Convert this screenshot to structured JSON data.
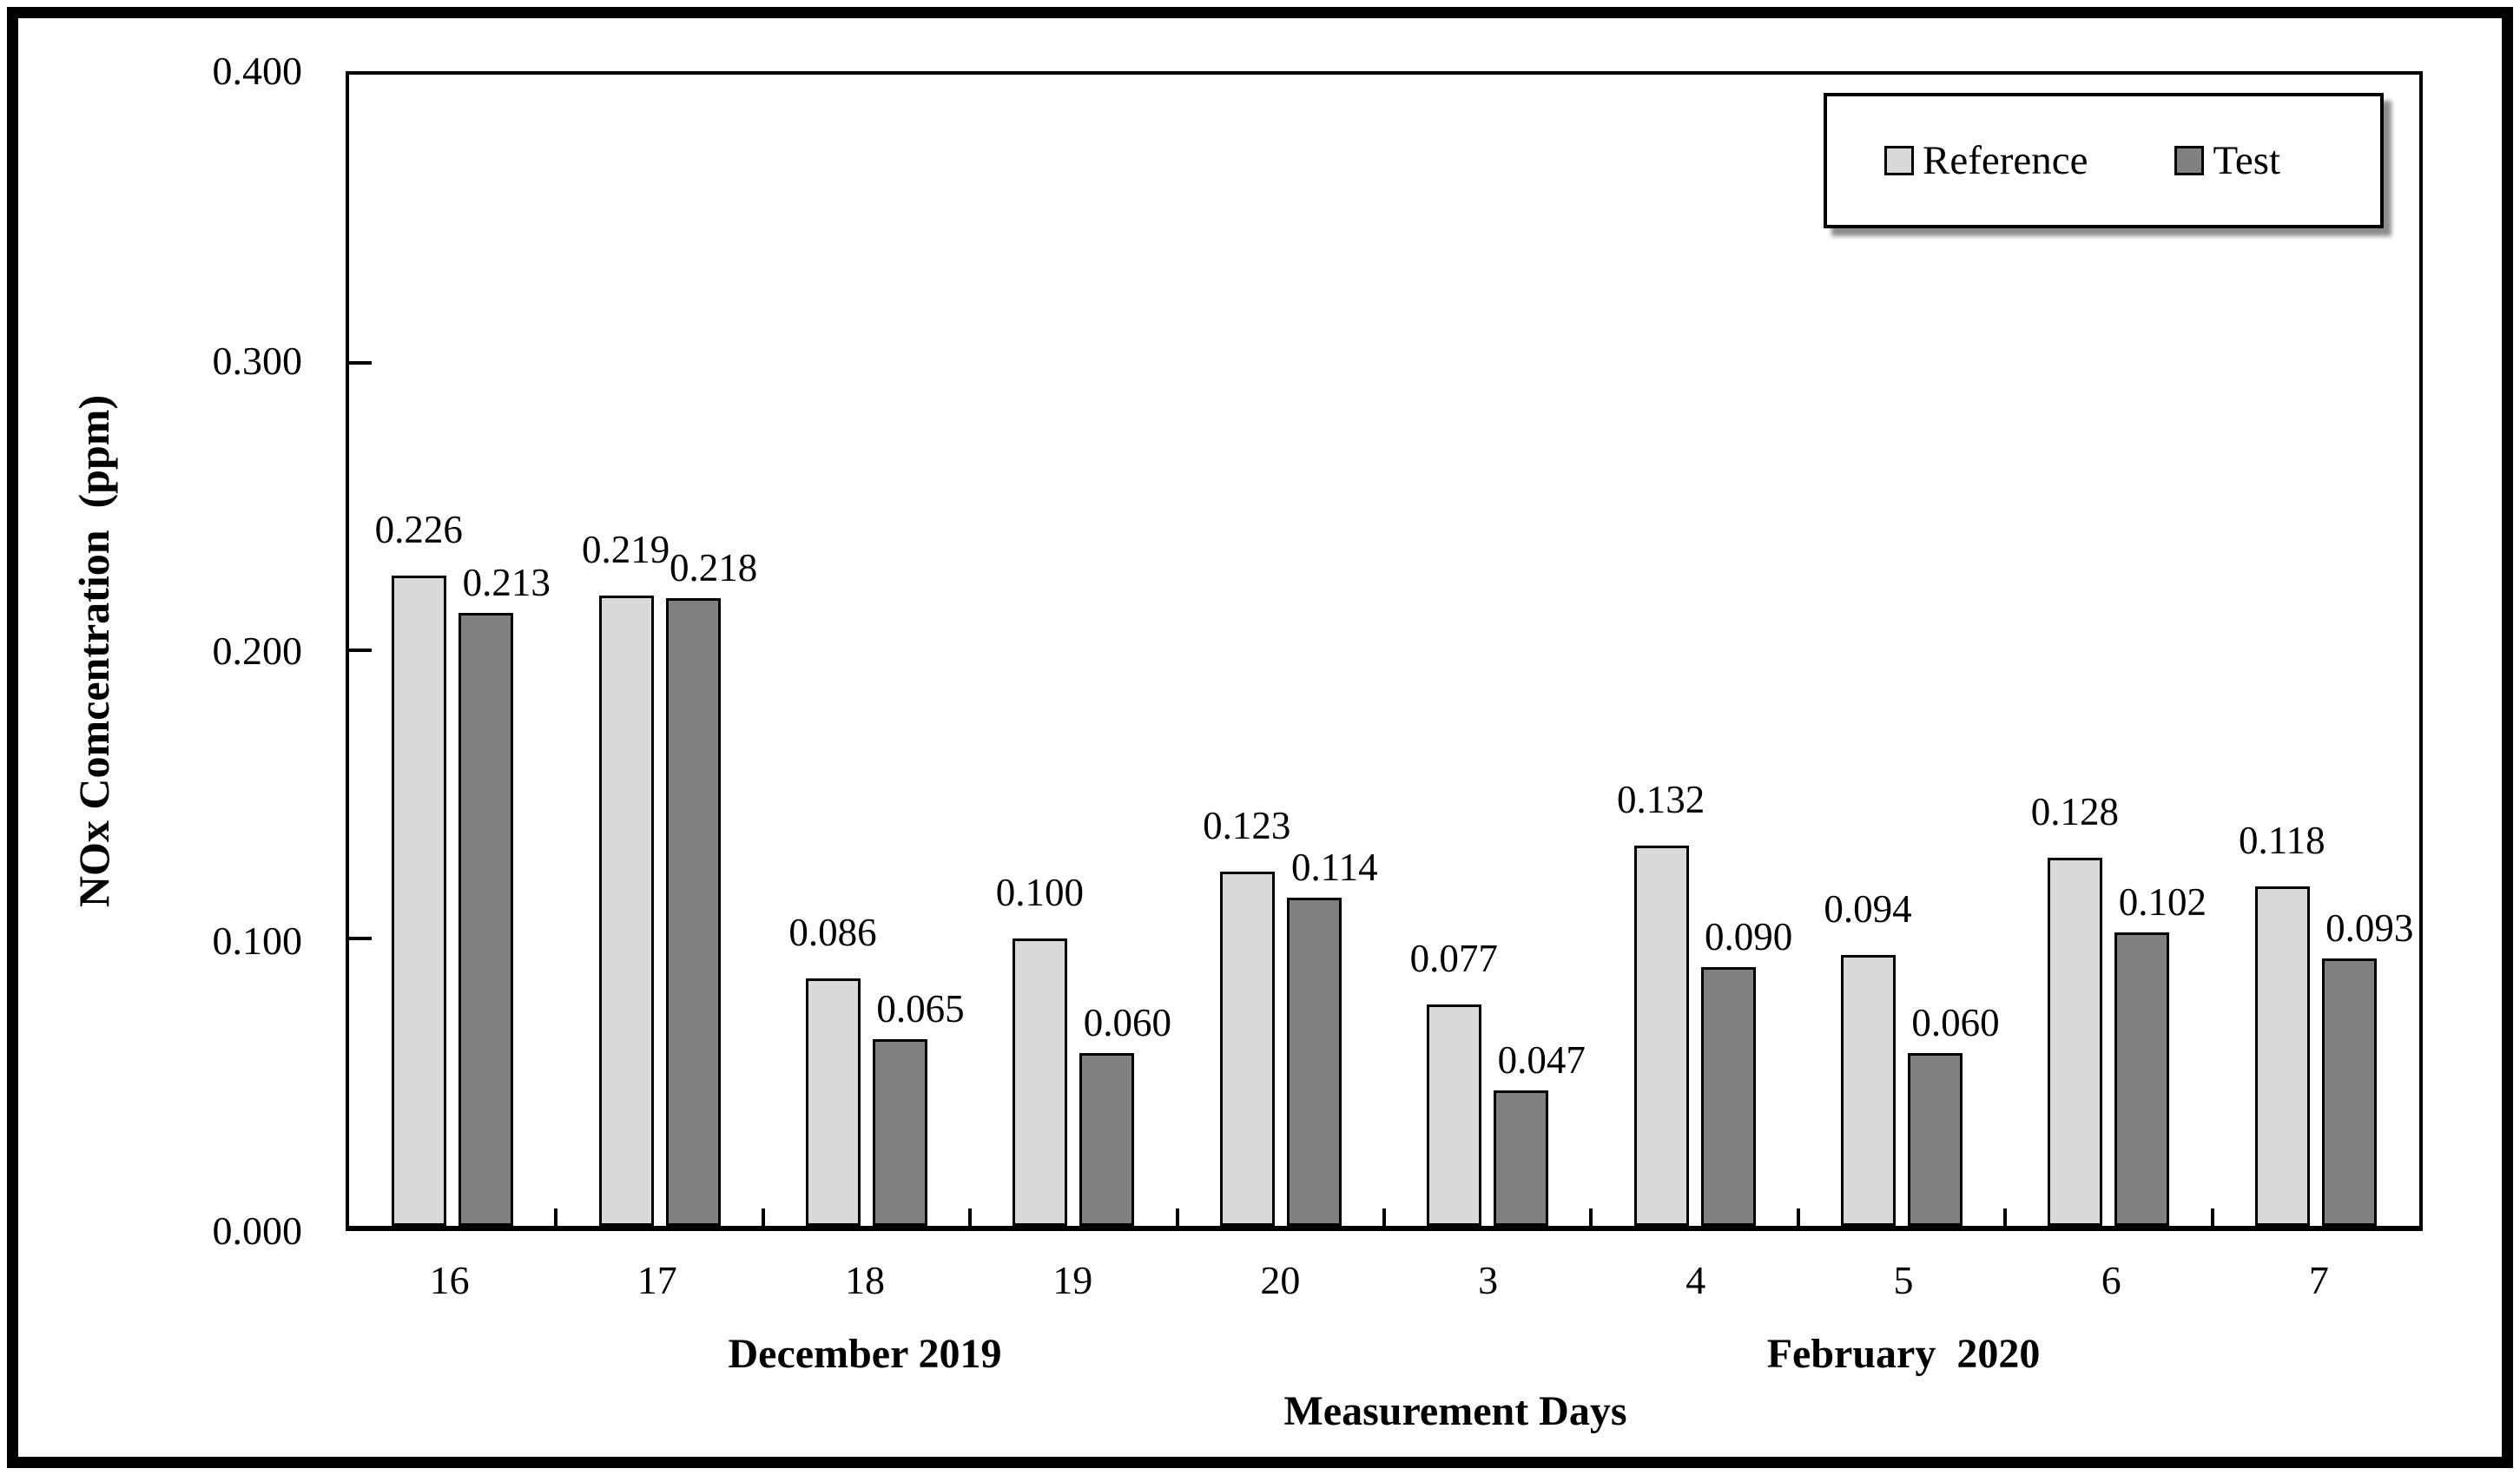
{
  "figure": {
    "background": "#ffffff",
    "border_color": "#000000",
    "bar_outline_color": "#000000"
  },
  "chart_data": {
    "type": "bar",
    "title": "",
    "ylabel": "NOx Comcentration  (ppm)",
    "xlabel": "Measurement Days",
    "ylim": [
      0,
      0.4
    ],
    "grid": false,
    "legend": {
      "position": "top-right"
    },
    "yticks": [
      {
        "label": "0.400",
        "value": 0.4
      },
      {
        "label": "0.300",
        "value": 0.3
      },
      {
        "label": "0.200",
        "value": 0.2
      },
      {
        "label": "0.100",
        "value": 0.1
      },
      {
        "label": "0.000",
        "value": 0.0
      }
    ],
    "categories": [
      "16",
      "17",
      "18",
      "19",
      "20",
      "3",
      "4",
      "5",
      "6",
      "7"
    ],
    "month_groups": [
      {
        "label": "December 2019",
        "start": 0,
        "end": 4
      },
      {
        "label": "February  2020",
        "start": 5,
        "end": 9
      }
    ],
    "series": [
      {
        "name": "Reference",
        "color": "#d9d9d9",
        "values": [
          0.226,
          0.219,
          0.086,
          0.1,
          0.123,
          0.077,
          0.132,
          0.094,
          0.128,
          0.118
        ],
        "labels": [
          "0.226",
          "0.219",
          "0.086",
          "0.100",
          "0.123",
          "0.077",
          "0.132",
          "0.094",
          "0.128",
          "0.118"
        ]
      },
      {
        "name": "Test",
        "color": "#808080",
        "values": [
          0.213,
          0.218,
          0.065,
          0.06,
          0.114,
          0.047,
          0.09,
          0.06,
          0.102,
          0.093
        ],
        "labels": [
          "0.213",
          "0.218",
          "0.065",
          "0.060",
          "0.114",
          "0.047",
          "0.090",
          "0.060",
          "0.102",
          "0.093"
        ]
      }
    ]
  }
}
